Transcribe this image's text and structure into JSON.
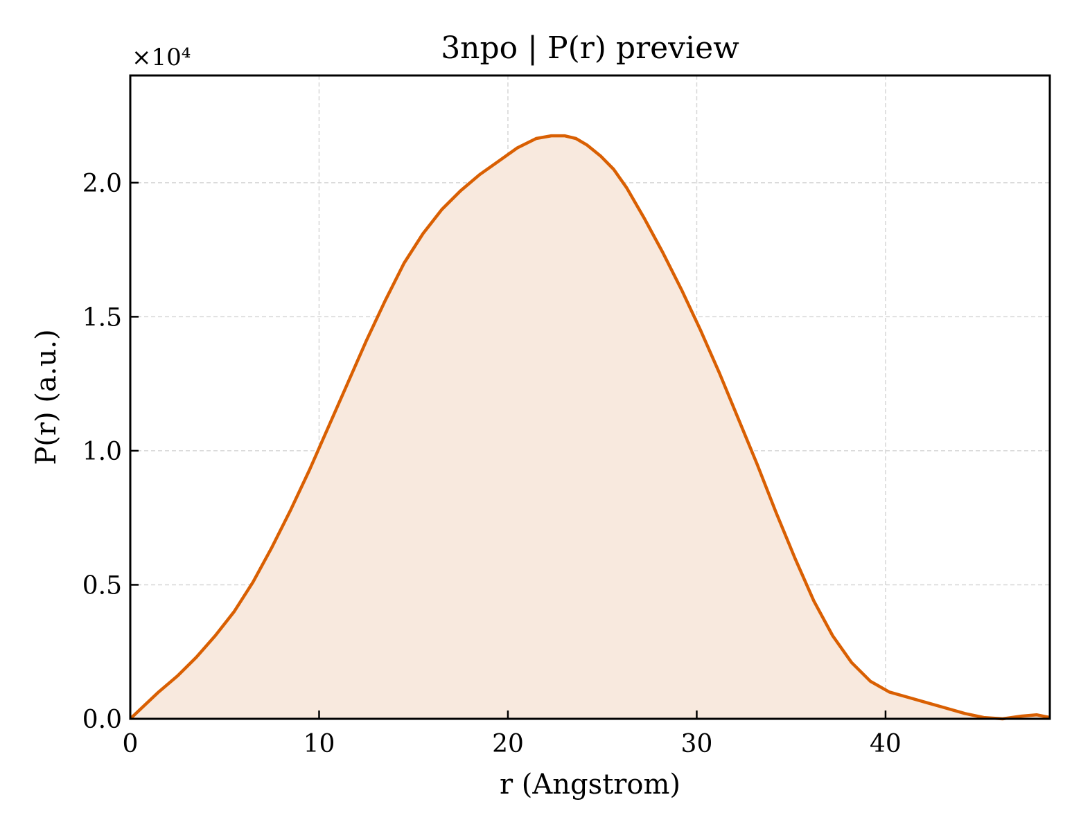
{
  "chart_data": {
    "type": "area",
    "title": "3npo | P(r) preview",
    "xlabel": "r (Angstrom)",
    "ylabel": "P(r) (a.u.)",
    "y_offset_label": "×10⁴",
    "xlim": [
      0,
      48.7
    ],
    "ylim": [
      0,
      2.4
    ],
    "y_scale_factor": 10000,
    "xticks": [
      0,
      10,
      20,
      30,
      40
    ],
    "yticks": [
      0.0,
      0.5,
      1.0,
      1.5,
      2.0
    ],
    "xtick_labels": [
      "0",
      "10",
      "20",
      "30",
      "40"
    ],
    "ytick_labels": [
      "0.0",
      "0.5",
      "1.0",
      "1.5",
      "2.0"
    ],
    "grid": true,
    "colors": {
      "line": "#d95f02",
      "fill": "#f8e9de"
    },
    "series": [
      {
        "x": [
          0,
          0.6,
          1.5,
          2.5,
          3.5,
          4.5,
          5.5,
          6.5,
          7.5,
          8.5,
          9.5,
          10.5,
          11.5,
          12.5,
          13.5,
          14.5,
          15.5,
          16.5,
          17.5,
          18.5,
          19.5,
          20.5,
          21.5,
          22.3,
          23.0,
          23.6,
          24.2,
          24.9,
          25.6,
          26.3,
          27.2,
          28.2,
          29.2,
          30.2,
          31.2,
          32.2,
          33.2,
          34.2,
          35.2,
          36.2,
          37.2,
          38.2,
          39.2,
          40.2,
          41.2,
          42.2,
          43.2,
          44.2,
          45.2,
          46.2,
          47.2,
          48.0,
          48.7
        ],
        "y": [
          0.0,
          0.04,
          0.1,
          0.16,
          0.23,
          0.31,
          0.4,
          0.51,
          0.64,
          0.78,
          0.93,
          1.09,
          1.25,
          1.41,
          1.56,
          1.7,
          1.81,
          1.9,
          1.97,
          2.03,
          2.08,
          2.13,
          2.165,
          2.175,
          2.175,
          2.165,
          2.14,
          2.1,
          2.05,
          1.98,
          1.87,
          1.74,
          1.6,
          1.45,
          1.29,
          1.12,
          0.95,
          0.77,
          0.6,
          0.44,
          0.31,
          0.21,
          0.14,
          0.1,
          0.08,
          0.06,
          0.04,
          0.02,
          0.005,
          0.0,
          0.01,
          0.015,
          0.005
        ]
      }
    ]
  }
}
